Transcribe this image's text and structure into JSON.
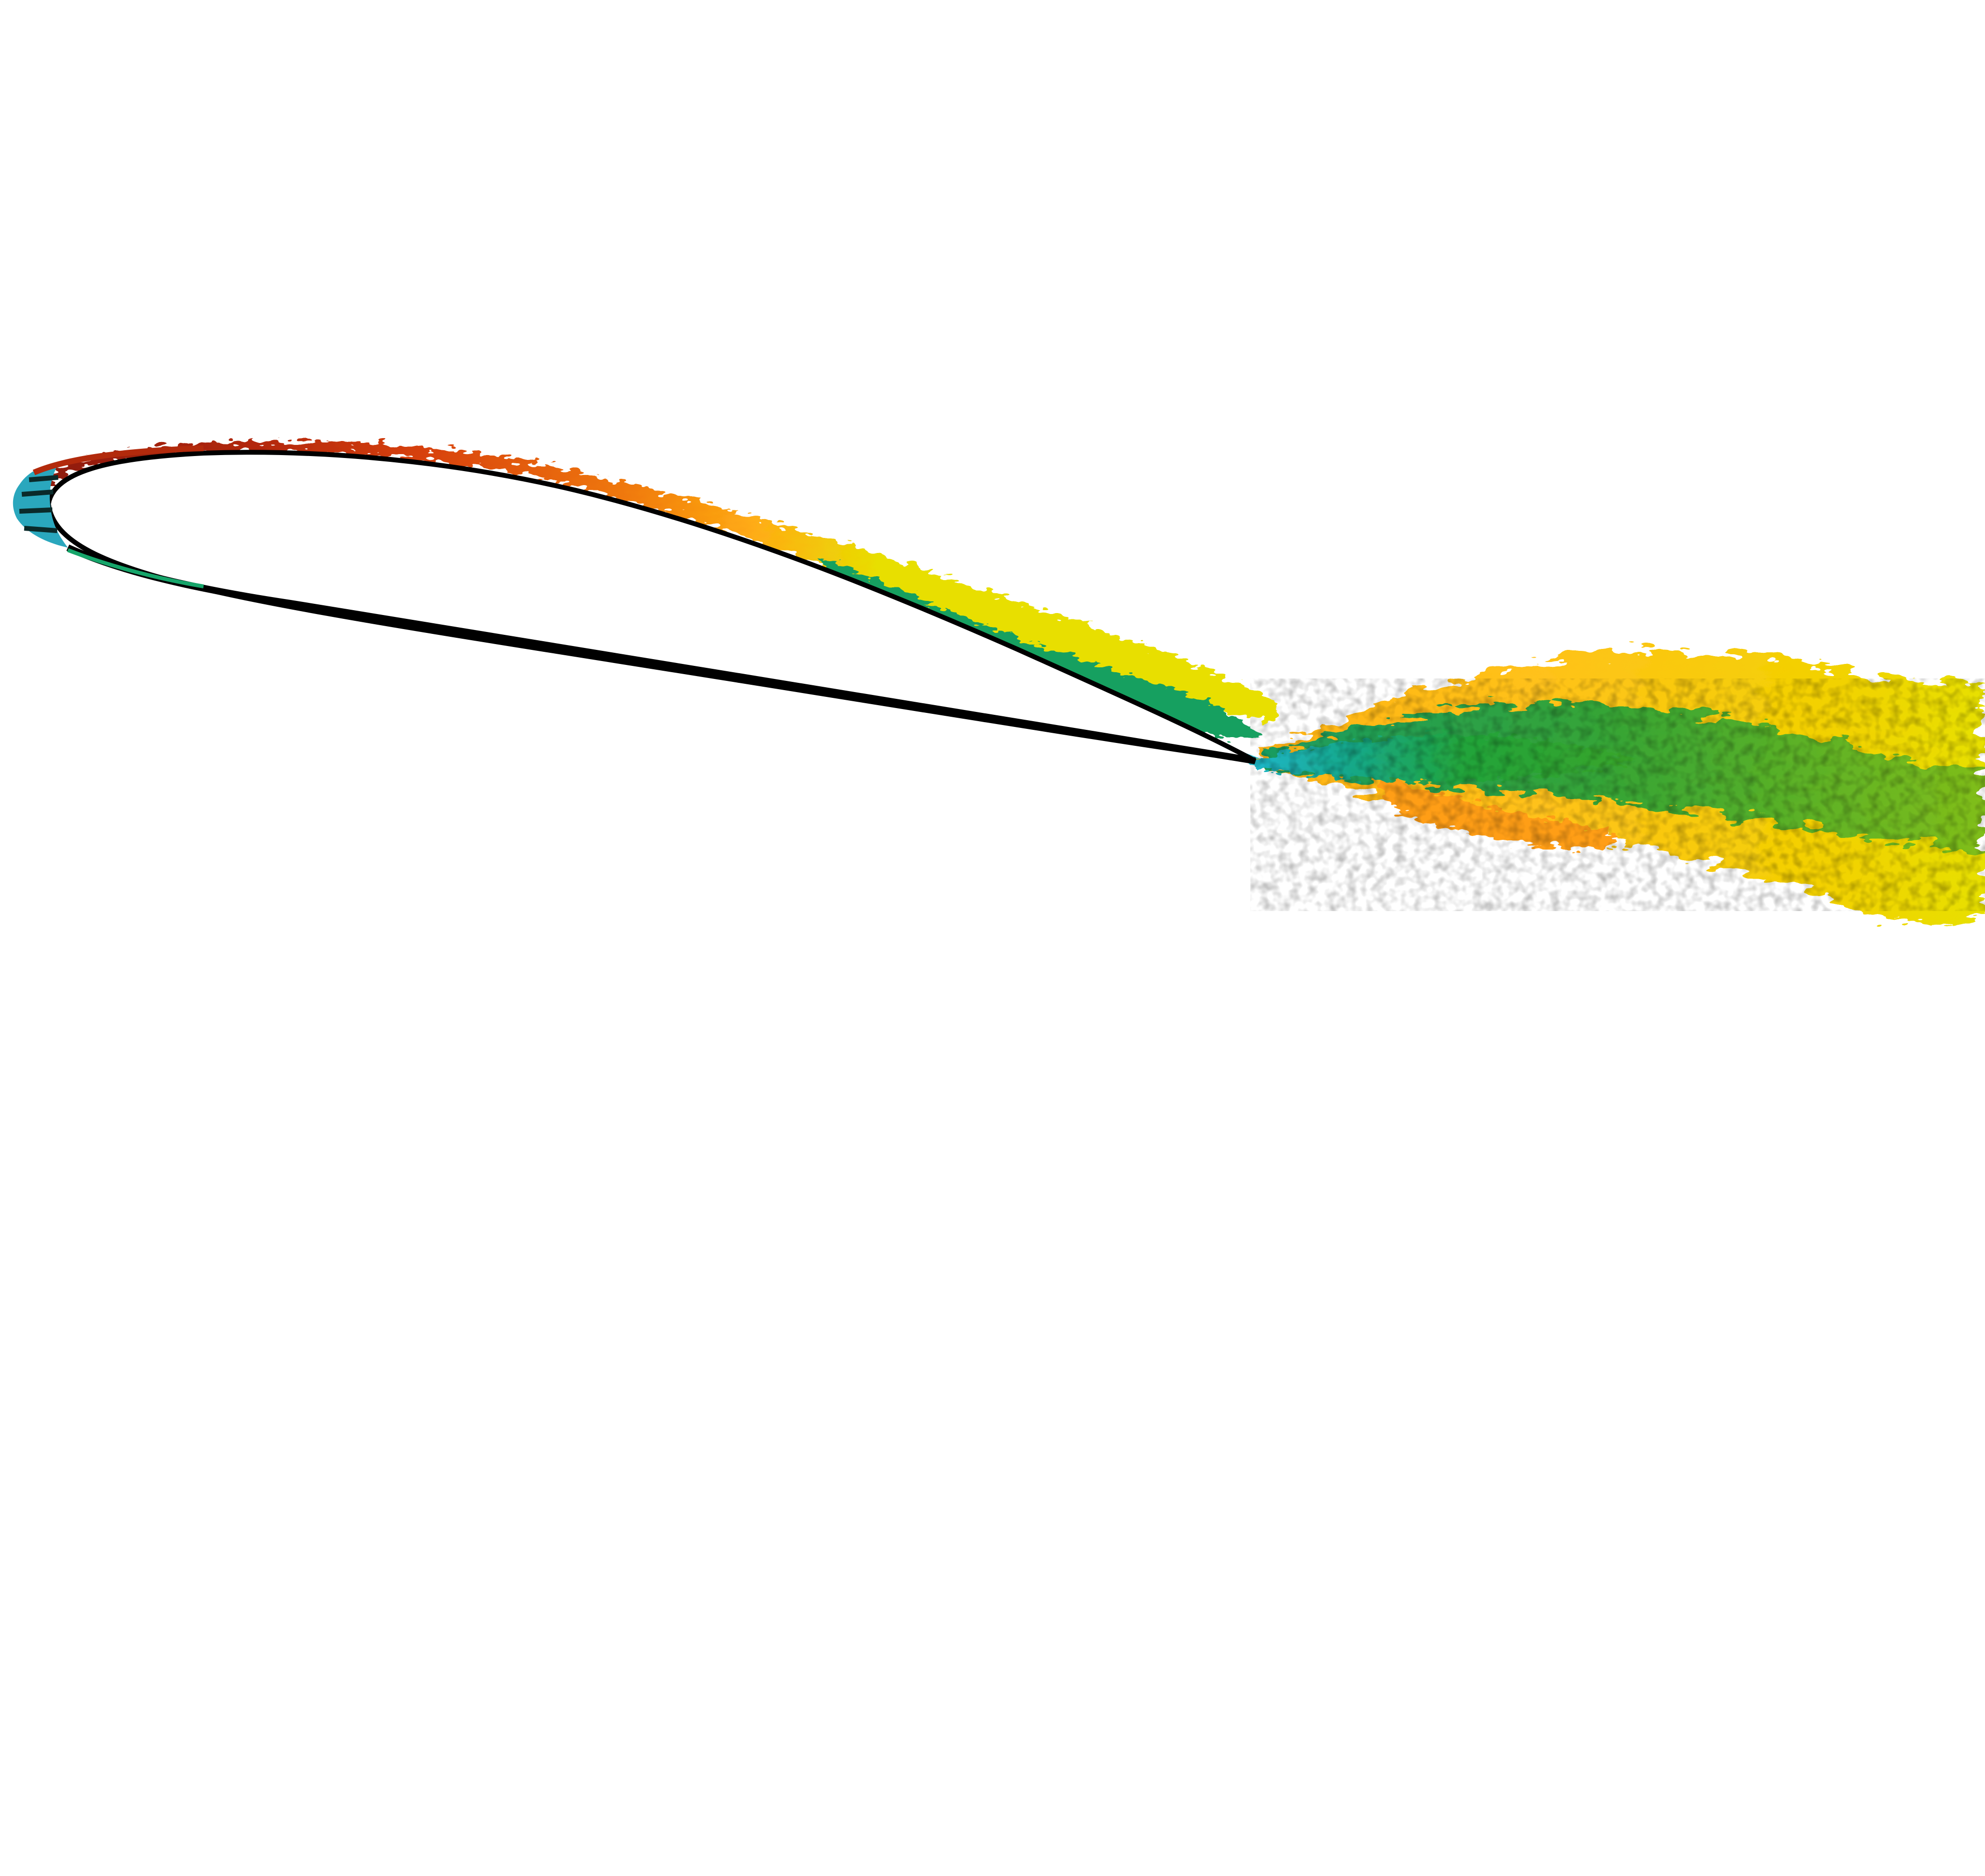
{
  "image": {
    "background": "#ffffff",
    "subject": "turbulent-boundary-layer-and-wake-over-airfoil",
    "colormap": [
      "#1fb7c9",
      "#16a56a",
      "#3cb02c",
      "#8ec31d",
      "#e7e000",
      "#ffc21a",
      "#ff9a10",
      "#f26a0a",
      "#c8300c",
      "#8b1a0c"
    ],
    "airfoil_outline_color": "#000000",
    "leading_edge_color": "#2aa7bd"
  }
}
